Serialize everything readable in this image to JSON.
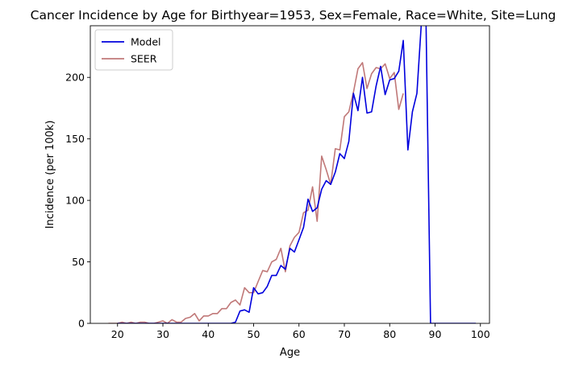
{
  "chart_data": {
    "type": "line",
    "title": "Cancer Incidence by Age for Birthyear=1953, Sex=Female, Race=White, Site=Lung",
    "xlabel": "Age",
    "ylabel": "Incidence (per 100k)",
    "xlim": [
      14,
      102
    ],
    "ylim": [
      0,
      242
    ],
    "xticks": [
      20,
      30,
      40,
      50,
      60,
      70,
      80,
      90,
      100
    ],
    "yticks": [
      0,
      50,
      100,
      150,
      200
    ],
    "grid": false,
    "legend_position": "upper-left",
    "series": [
      {
        "name": "Model",
        "color": "#0000dd",
        "x": [
          20,
          21,
          22,
          23,
          24,
          25,
          26,
          27,
          28,
          29,
          30,
          31,
          32,
          33,
          34,
          35,
          36,
          37,
          38,
          39,
          40,
          41,
          42,
          43,
          44,
          45,
          46,
          47,
          48,
          49,
          50,
          51,
          52,
          53,
          54,
          55,
          56,
          57,
          58,
          59,
          60,
          61,
          62,
          63,
          64,
          65,
          66,
          67,
          68,
          69,
          70,
          71,
          72,
          73,
          74,
          75,
          76,
          77,
          78,
          79,
          80,
          81,
          82,
          83,
          84,
          85,
          86,
          87,
          88,
          89,
          90,
          91,
          92,
          93,
          94,
          95,
          96,
          97,
          98,
          99
        ],
        "values": [
          0,
          0,
          0,
          0,
          0,
          0,
          0,
          0,
          0,
          0,
          0,
          0,
          0,
          0,
          0,
          0,
          0,
          0,
          0,
          0,
          0,
          0,
          0,
          0,
          0,
          0,
          1,
          10,
          11,
          9,
          29,
          24,
          25,
          30,
          39,
          39,
          47,
          44,
          61,
          58,
          68,
          78,
          101,
          91,
          94,
          109,
          116,
          113,
          123,
          138,
          134,
          148,
          187,
          173,
          200,
          171,
          172,
          193,
          209,
          186,
          198,
          199,
          205,
          230,
          141,
          172,
          187,
          245,
          245,
          0,
          0,
          0,
          0,
          0,
          0,
          0,
          0,
          0,
          0,
          0
        ]
      },
      {
        "name": "SEER",
        "color": "#c07878",
        "x": [
          18,
          19,
          20,
          21,
          22,
          23,
          24,
          25,
          26,
          27,
          28,
          29,
          30,
          31,
          32,
          33,
          34,
          35,
          36,
          37,
          38,
          39,
          40,
          41,
          42,
          43,
          44,
          45,
          46,
          47,
          48,
          49,
          50,
          51,
          52,
          53,
          54,
          55,
          56,
          57,
          58,
          59,
          60,
          61,
          62,
          63,
          64,
          65,
          66,
          67,
          68,
          69,
          70,
          71,
          72,
          73,
          74,
          75,
          76,
          77,
          78,
          79,
          80,
          81,
          82,
          83
        ],
        "values": [
          0,
          0,
          0,
          1,
          0,
          1,
          0,
          1,
          1,
          0,
          0,
          1,
          2,
          0,
          3,
          1,
          1,
          4,
          5,
          8,
          2,
          6,
          6,
          8,
          8,
          12,
          12,
          17,
          19,
          15,
          29,
          25,
          25,
          34,
          43,
          42,
          50,
          52,
          61,
          42,
          63,
          70,
          74,
          90,
          92,
          111,
          83,
          136,
          125,
          113,
          142,
          141,
          168,
          172,
          188,
          207,
          212,
          191,
          203,
          208,
          207,
          211,
          199,
          204,
          174,
          187
        ]
      }
    ]
  }
}
